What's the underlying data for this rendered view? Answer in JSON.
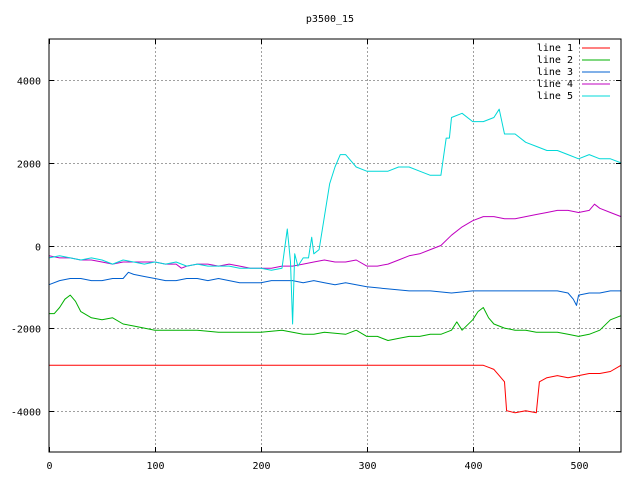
{
  "chart_data": {
    "type": "line",
    "title": "p3500_15",
    "xlabel": "",
    "ylabel": "",
    "xlim": [
      0,
      540
    ],
    "ylim": [
      -5000,
      5000
    ],
    "x_ticks": [
      0,
      100,
      200,
      300,
      400,
      500
    ],
    "y_ticks": [
      -4000,
      -2000,
      0,
      2000,
      4000
    ],
    "x_tick_labels": [
      "0",
      "100",
      "200",
      "300",
      "400",
      "500"
    ],
    "y_tick_labels": [
      "-4000",
      "-2000",
      "0",
      "2000",
      "4000"
    ],
    "grid": true,
    "legend_position": "top-right",
    "series": [
      {
        "name": "line 1",
        "color": "#ff0000",
        "points": [
          [
            0,
            -2900
          ],
          [
            100,
            -2900
          ],
          [
            200,
            -2900
          ],
          [
            300,
            -2900
          ],
          [
            400,
            -2900
          ],
          [
            410,
            -2900
          ],
          [
            415,
            -2950
          ],
          [
            420,
            -3000
          ],
          [
            425,
            -3150
          ],
          [
            430,
            -3300
          ],
          [
            432,
            -4000
          ],
          [
            440,
            -4050
          ],
          [
            450,
            -4000
          ],
          [
            460,
            -4050
          ],
          [
            463,
            -3300
          ],
          [
            470,
            -3200
          ],
          [
            480,
            -3150
          ],
          [
            490,
            -3200
          ],
          [
            500,
            -3150
          ],
          [
            510,
            -3100
          ],
          [
            520,
            -3100
          ],
          [
            530,
            -3050
          ],
          [
            540,
            -2900
          ]
        ]
      },
      {
        "name": "line 2",
        "color": "#00b000",
        "points": [
          [
            0,
            -1650
          ],
          [
            5,
            -1650
          ],
          [
            10,
            -1500
          ],
          [
            15,
            -1300
          ],
          [
            20,
            -1200
          ],
          [
            25,
            -1350
          ],
          [
            30,
            -1600
          ],
          [
            40,
            -1750
          ],
          [
            50,
            -1800
          ],
          [
            60,
            -1750
          ],
          [
            70,
            -1900
          ],
          [
            80,
            -1950
          ],
          [
            90,
            -2000
          ],
          [
            100,
            -2050
          ],
          [
            120,
            -2050
          ],
          [
            140,
            -2050
          ],
          [
            160,
            -2100
          ],
          [
            180,
            -2100
          ],
          [
            200,
            -2100
          ],
          [
            220,
            -2050
          ],
          [
            230,
            -2100
          ],
          [
            240,
            -2150
          ],
          [
            250,
            -2150
          ],
          [
            260,
            -2100
          ],
          [
            280,
            -2150
          ],
          [
            290,
            -2050
          ],
          [
            300,
            -2200
          ],
          [
            310,
            -2200
          ],
          [
            320,
            -2300
          ],
          [
            330,
            -2250
          ],
          [
            340,
            -2200
          ],
          [
            350,
            -2200
          ],
          [
            360,
            -2150
          ],
          [
            370,
            -2150
          ],
          [
            380,
            -2050
          ],
          [
            385,
            -1850
          ],
          [
            390,
            -2050
          ],
          [
            400,
            -1800
          ],
          [
            405,
            -1600
          ],
          [
            410,
            -1500
          ],
          [
            415,
            -1750
          ],
          [
            420,
            -1900
          ],
          [
            430,
            -2000
          ],
          [
            440,
            -2050
          ],
          [
            450,
            -2050
          ],
          [
            460,
            -2100
          ],
          [
            470,
            -2100
          ],
          [
            480,
            -2100
          ],
          [
            490,
            -2150
          ],
          [
            500,
            -2200
          ],
          [
            510,
            -2150
          ],
          [
            520,
            -2050
          ],
          [
            530,
            -1800
          ],
          [
            540,
            -1700
          ]
        ]
      },
      {
        "name": "line 3",
        "color": "#0060d0",
        "points": [
          [
            0,
            -950
          ],
          [
            10,
            -850
          ],
          [
            20,
            -800
          ],
          [
            30,
            -800
          ],
          [
            40,
            -850
          ],
          [
            50,
            -850
          ],
          [
            60,
            -800
          ],
          [
            70,
            -800
          ],
          [
            75,
            -650
          ],
          [
            80,
            -700
          ],
          [
            90,
            -750
          ],
          [
            100,
            -800
          ],
          [
            110,
            -850
          ],
          [
            120,
            -850
          ],
          [
            130,
            -800
          ],
          [
            140,
            -800
          ],
          [
            150,
            -850
          ],
          [
            160,
            -800
          ],
          [
            170,
            -850
          ],
          [
            180,
            -900
          ],
          [
            200,
            -900
          ],
          [
            210,
            -850
          ],
          [
            220,
            -850
          ],
          [
            230,
            -850
          ],
          [
            240,
            -900
          ],
          [
            250,
            -850
          ],
          [
            260,
            -900
          ],
          [
            270,
            -950
          ],
          [
            280,
            -900
          ],
          [
            290,
            -950
          ],
          [
            300,
            -1000
          ],
          [
            320,
            -1050
          ],
          [
            340,
            -1100
          ],
          [
            360,
            -1100
          ],
          [
            380,
            -1150
          ],
          [
            400,
            -1100
          ],
          [
            420,
            -1100
          ],
          [
            440,
            -1100
          ],
          [
            460,
            -1100
          ],
          [
            480,
            -1100
          ],
          [
            490,
            -1150
          ],
          [
            495,
            -1300
          ],
          [
            498,
            -1450
          ],
          [
            500,
            -1200
          ],
          [
            510,
            -1150
          ],
          [
            520,
            -1150
          ],
          [
            530,
            -1100
          ],
          [
            540,
            -1100
          ]
        ]
      },
      {
        "name": "line 4",
        "color": "#c000c0",
        "points": [
          [
            0,
            -250
          ],
          [
            10,
            -300
          ],
          [
            20,
            -300
          ],
          [
            30,
            -350
          ],
          [
            40,
            -350
          ],
          [
            50,
            -400
          ],
          [
            60,
            -450
          ],
          [
            70,
            -400
          ],
          [
            80,
            -400
          ],
          [
            90,
            -400
          ],
          [
            100,
            -400
          ],
          [
            110,
            -450
          ],
          [
            120,
            -450
          ],
          [
            125,
            -550
          ],
          [
            130,
            -500
          ],
          [
            140,
            -450
          ],
          [
            150,
            -450
          ],
          [
            160,
            -500
          ],
          [
            170,
            -450
          ],
          [
            180,
            -500
          ],
          [
            190,
            -550
          ],
          [
            200,
            -550
          ],
          [
            210,
            -550
          ],
          [
            220,
            -500
          ],
          [
            230,
            -500
          ],
          [
            240,
            -450
          ],
          [
            250,
            -400
          ],
          [
            260,
            -350
          ],
          [
            270,
            -400
          ],
          [
            280,
            -400
          ],
          [
            290,
            -350
          ],
          [
            300,
            -500
          ],
          [
            310,
            -500
          ],
          [
            320,
            -450
          ],
          [
            330,
            -350
          ],
          [
            340,
            -250
          ],
          [
            350,
            -200
          ],
          [
            360,
            -100
          ],
          [
            370,
            0
          ],
          [
            380,
            250
          ],
          [
            390,
            450
          ],
          [
            400,
            600
          ],
          [
            410,
            700
          ],
          [
            420,
            700
          ],
          [
            430,
            650
          ],
          [
            440,
            650
          ],
          [
            450,
            700
          ],
          [
            460,
            750
          ],
          [
            470,
            800
          ],
          [
            480,
            850
          ],
          [
            490,
            850
          ],
          [
            500,
            800
          ],
          [
            510,
            850
          ],
          [
            515,
            1000
          ],
          [
            520,
            900
          ],
          [
            530,
            800
          ],
          [
            540,
            700
          ]
        ]
      },
      {
        "name": "line 5",
        "color": "#00d8d8",
        "points": [
          [
            0,
            -300
          ],
          [
            10,
            -250
          ],
          [
            20,
            -300
          ],
          [
            30,
            -350
          ],
          [
            40,
            -300
          ],
          [
            50,
            -350
          ],
          [
            60,
            -450
          ],
          [
            70,
            -350
          ],
          [
            80,
            -400
          ],
          [
            90,
            -450
          ],
          [
            100,
            -400
          ],
          [
            110,
            -450
          ],
          [
            120,
            -400
          ],
          [
            130,
            -500
          ],
          [
            140,
            -450
          ],
          [
            150,
            -500
          ],
          [
            160,
            -500
          ],
          [
            170,
            -500
          ],
          [
            180,
            -550
          ],
          [
            190,
            -550
          ],
          [
            200,
            -550
          ],
          [
            210,
            -600
          ],
          [
            220,
            -550
          ],
          [
            225,
            400
          ],
          [
            228,
            -400
          ],
          [
            230,
            -1900
          ],
          [
            232,
            -200
          ],
          [
            235,
            -500
          ],
          [
            240,
            -300
          ],
          [
            245,
            -300
          ],
          [
            248,
            200
          ],
          [
            250,
            -200
          ],
          [
            255,
            -100
          ],
          [
            260,
            700
          ],
          [
            265,
            1500
          ],
          [
            270,
            1900
          ],
          [
            275,
            2200
          ],
          [
            280,
            2200
          ],
          [
            290,
            1900
          ],
          [
            300,
            1800
          ],
          [
            310,
            1800
          ],
          [
            320,
            1800
          ],
          [
            330,
            1900
          ],
          [
            340,
            1900
          ],
          [
            350,
            1800
          ],
          [
            360,
            1700
          ],
          [
            370,
            1700
          ],
          [
            375,
            2600
          ],
          [
            378,
            2600
          ],
          [
            380,
            3100
          ],
          [
            390,
            3200
          ],
          [
            400,
            3000
          ],
          [
            410,
            3000
          ],
          [
            420,
            3100
          ],
          [
            425,
            3300
          ],
          [
            430,
            2700
          ],
          [
            440,
            2700
          ],
          [
            450,
            2500
          ],
          [
            460,
            2400
          ],
          [
            470,
            2300
          ],
          [
            480,
            2300
          ],
          [
            490,
            2200
          ],
          [
            500,
            2100
          ],
          [
            510,
            2200
          ],
          [
            520,
            2100
          ],
          [
            530,
            2100
          ],
          [
            540,
            2000
          ]
        ]
      }
    ]
  }
}
